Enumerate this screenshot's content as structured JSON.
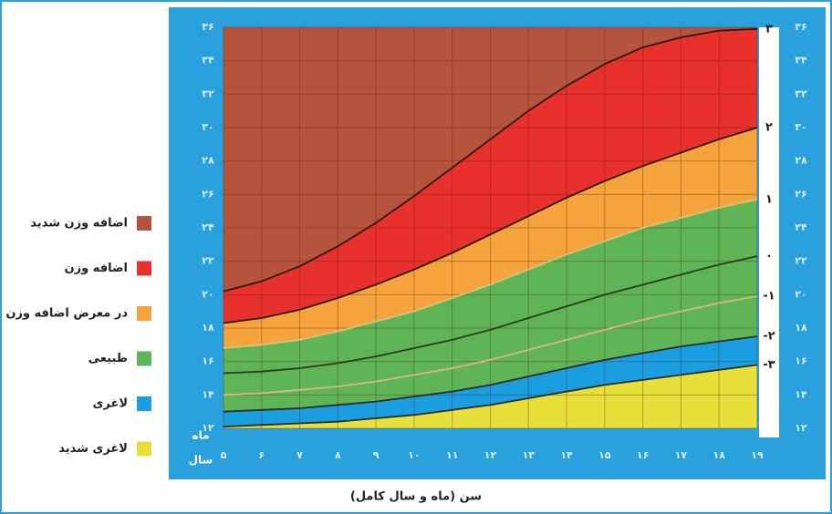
{
  "chart_data": {
    "type": "area",
    "x_label": "سن (ماه و سال کامل)",
    "x_unit_labels": [
      "ماه",
      "سال"
    ],
    "x": [
      5,
      6,
      7,
      8,
      9,
      10,
      11,
      12,
      13,
      14,
      15,
      16,
      17,
      18,
      19
    ],
    "xlim": [
      5,
      19
    ],
    "xticks": [
      {
        "value": 5,
        "label": "۵"
      },
      {
        "value": 6,
        "label": "۶"
      },
      {
        "value": 7,
        "label": "۷"
      },
      {
        "value": 8,
        "label": "۸"
      },
      {
        "value": 9,
        "label": "۹"
      },
      {
        "value": 10,
        "label": "۱۰"
      },
      {
        "value": 11,
        "label": "۱۱"
      },
      {
        "value": 12,
        "label": "۱۲"
      },
      {
        "value": 13,
        "label": "۱۳"
      },
      {
        "value": 14,
        "label": "۱۴"
      },
      {
        "value": 15,
        "label": "۱۵"
      },
      {
        "value": 16,
        "label": "۱۶"
      },
      {
        "value": 17,
        "label": "۱۷"
      },
      {
        "value": 18,
        "label": "۱۸"
      },
      {
        "value": 19,
        "label": "۱۹"
      }
    ],
    "ylim": [
      12,
      36
    ],
    "yticks": [
      {
        "value": 12,
        "label": "۱۲"
      },
      {
        "value": 14,
        "label": "۱۴"
      },
      {
        "value": 16,
        "label": "۱۶"
      },
      {
        "value": 18,
        "label": "۱۸"
      },
      {
        "value": 20,
        "label": "۲۰"
      },
      {
        "value": 22,
        "label": "۲۲"
      },
      {
        "value": 24,
        "label": "۲۴"
      },
      {
        "value": 26,
        "label": "۲۶"
      },
      {
        "value": 28,
        "label": "۲۸"
      },
      {
        "value": 30,
        "label": "۳۰"
      },
      {
        "value": 32,
        "label": "۳۲"
      },
      {
        "value": 34,
        "label": "۳۴"
      },
      {
        "value": 36,
        "label": "۳۶"
      }
    ],
    "grid": true,
    "top_color": "#b5533c",
    "series": [
      {
        "name": "۳",
        "color": "#2a1a14",
        "area_color": "#e8302c",
        "values": [
          20.2,
          20.8,
          21.7,
          22.9,
          24.3,
          25.9,
          27.6,
          29.3,
          31.0,
          32.5,
          33.8,
          34.8,
          35.4,
          35.8,
          35.9
        ]
      },
      {
        "name": "۲",
        "color": "#2a1a14",
        "area_color": "#f5a33d",
        "values": [
          18.3,
          18.6,
          19.1,
          19.8,
          20.6,
          21.5,
          22.5,
          23.6,
          24.7,
          25.8,
          26.8,
          27.7,
          28.5,
          29.3,
          30.0
        ]
      },
      {
        "name": "۱",
        "color": "#d8c27a",
        "area_color": "#5fb556",
        "values": [
          16.8,
          17.0,
          17.3,
          17.8,
          18.4,
          19.0,
          19.8,
          20.6,
          21.5,
          22.4,
          23.2,
          24.0,
          24.6,
          25.2,
          25.7
        ]
      },
      {
        "name": "۰",
        "color": "#2a3a22",
        "area_color": "#5fb556",
        "values": [
          15.3,
          15.4,
          15.6,
          15.9,
          16.3,
          16.8,
          17.3,
          17.9,
          18.6,
          19.3,
          20.0,
          20.6,
          21.2,
          21.8,
          22.3
        ]
      },
      {
        "name": "-۱",
        "color": "#d8b87a",
        "area_color": "#5fb556",
        "values": [
          14.0,
          14.1,
          14.3,
          14.5,
          14.8,
          15.2,
          15.6,
          16.1,
          16.7,
          17.3,
          17.9,
          18.5,
          19.0,
          19.5,
          19.9
        ]
      },
      {
        "name": "-۲",
        "color": "#2a2a2a",
        "area_color": "#1a9ee0",
        "values": [
          13.0,
          13.1,
          13.2,
          13.4,
          13.6,
          13.9,
          14.2,
          14.6,
          15.1,
          15.6,
          16.1,
          16.5,
          16.9,
          17.2,
          17.5
        ]
      },
      {
        "name": "-۳",
        "color": "#2a2a2a",
        "area_color": "#e8e03a",
        "values": [
          12.1,
          12.2,
          12.3,
          12.4,
          12.6,
          12.8,
          13.1,
          13.4,
          13.8,
          14.2,
          14.6,
          14.9,
          15.2,
          15.5,
          15.8
        ]
      }
    ],
    "legend": [
      {
        "name": "اضافه وزن شدید",
        "color": "#b5533c"
      },
      {
        "name": "اضافه وزن",
        "color": "#e8302c"
      },
      {
        "name": "در معرض اضافه وزن",
        "color": "#f5a33d"
      },
      {
        "name": "طبیعی",
        "color": "#5fb556"
      },
      {
        "name": "لاغری",
        "color": "#1a9ee0"
      },
      {
        "name": "لاغری شدید",
        "color": "#e8e03a"
      }
    ]
  }
}
